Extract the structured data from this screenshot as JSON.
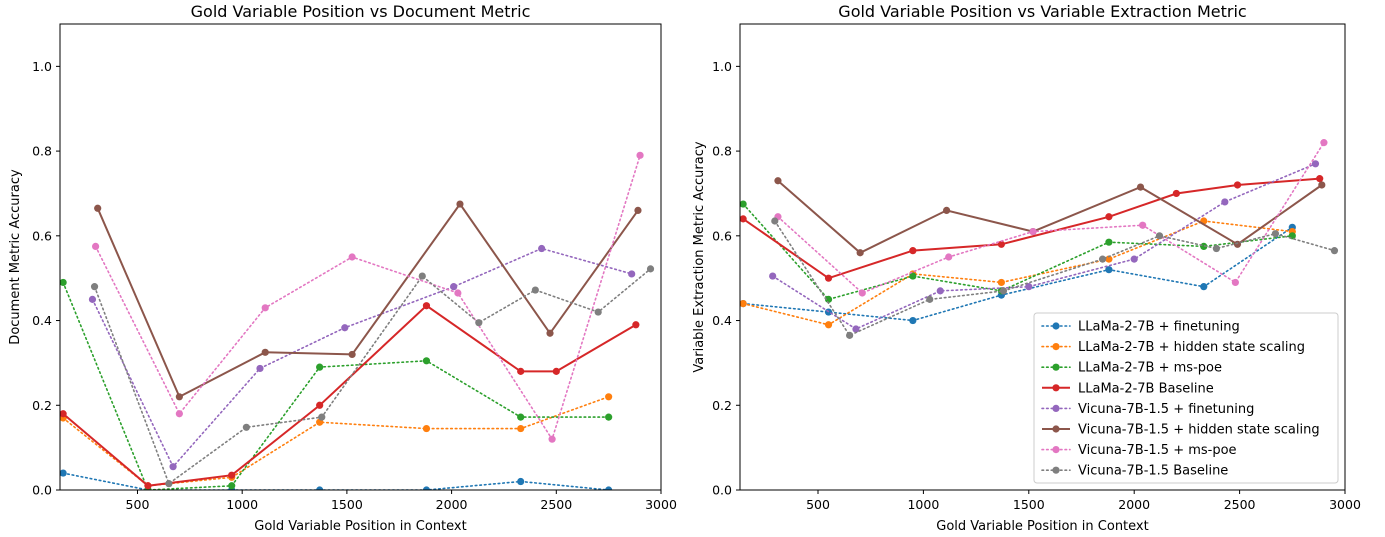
{
  "chart_data": [
    {
      "type": "line",
      "title": "Gold Variable Position vs Document Metric",
      "xlabel": "Gold Variable Position in Context",
      "ylabel": "Document Metric Accuracy",
      "xlim": [
        130,
        3000
      ],
      "ylim": [
        0,
        1.1
      ],
      "xticks": [
        500,
        1000,
        1500,
        2000,
        2500,
        3000
      ],
      "yticks": [
        0.0,
        0.2,
        0.4,
        0.6,
        0.8,
        1.0
      ],
      "xtick_labels": [
        "500",
        "1000",
        "1500",
        "2000",
        "2500",
        "3000"
      ],
      "ytick_labels": [
        "0.0",
        "0.2",
        "0.4",
        "0.6",
        "0.8",
        "1.0"
      ],
      "grid": false,
      "series": [
        {
          "name": "LLaMa-2-7B + finetuning",
          "color": "#1f77b4",
          "style": "dotted",
          "x": [
            145,
            550,
            950,
            1370,
            1880,
            2330,
            2750
          ],
          "y": [
            0.04,
            0.0,
            0.0,
            0.0,
            0.0,
            0.02,
            0.0
          ]
        },
        {
          "name": "LLaMa-2-7B + hidden state scaling",
          "color": "#ff7f0e",
          "style": "dotted",
          "x": [
            145,
            550,
            950,
            1370,
            1880,
            2330,
            2750
          ],
          "y": [
            0.17,
            0.01,
            0.03,
            0.16,
            0.145,
            0.145,
            0.22
          ]
        },
        {
          "name": "LLaMa-2-7B + ms-poe",
          "color": "#2ca02c",
          "style": "dotted",
          "x": [
            145,
            550,
            950,
            1370,
            1880,
            2330,
            2750
          ],
          "y": [
            0.49,
            0.0,
            0.01,
            0.29,
            0.305,
            0.172,
            0.172
          ]
        },
        {
          "name": "LLaMa-2-7B Baseline",
          "color": "#d62728",
          "style": "solid",
          "x": [
            145,
            550,
            950,
            1370,
            1880,
            2330,
            2500,
            2880
          ],
          "y": [
            0.18,
            0.01,
            0.035,
            0.2,
            0.435,
            0.28,
            0.28,
            0.39
          ]
        },
        {
          "name": "Vicuna-7B-1.5 + finetuning",
          "color": "#9467bd",
          "style": "dotted",
          "x": [
            285,
            670,
            1085,
            1490,
            2010,
            2430,
            2860
          ],
          "y": [
            0.45,
            0.055,
            0.287,
            0.383,
            0.48,
            0.57,
            0.51
          ]
        },
        {
          "name": "Vicuna-7B-1.5 + hidden state scaling",
          "color": "#8c564b",
          "style": "solid",
          "x": [
            310,
            700,
            1110,
            1525,
            2040,
            2470,
            2890
          ],
          "y": [
            0.665,
            0.22,
            0.325,
            0.32,
            0.675,
            0.37,
            0.66
          ]
        },
        {
          "name": "Vicuna-7B-1.5 + ms-poe",
          "color": "#e377c2",
          "style": "dotted",
          "x": [
            300,
            700,
            1110,
            1525,
            2030,
            2480,
            2900
          ],
          "y": [
            0.575,
            0.18,
            0.43,
            0.55,
            0.465,
            0.12,
            0.79
          ]
        },
        {
          "name": "Vicuna-7B-1.5 Baseline",
          "color": "#7f7f7f",
          "style": "dotted",
          "x": [
            295,
            650,
            1020,
            1380,
            1860,
            2130,
            2400,
            2700,
            2950
          ],
          "y": [
            0.48,
            0.015,
            0.148,
            0.172,
            0.505,
            0.395,
            0.472,
            0.42,
            0.522
          ]
        }
      ]
    },
    {
      "type": "line",
      "title": "Gold Variable Position vs Variable Extraction Metric",
      "xlabel": "Gold Variable Position in Context",
      "ylabel": "Variable Extraction Metric Accuracy",
      "xlim": [
        130,
        3000
      ],
      "ylim": [
        0,
        1.1
      ],
      "xticks": [
        500,
        1000,
        1500,
        2000,
        2500,
        3000
      ],
      "yticks": [
        0.0,
        0.2,
        0.4,
        0.6,
        0.8,
        1.0
      ],
      "xtick_labels": [
        "500",
        "1000",
        "1500",
        "2000",
        "2500",
        "3000"
      ],
      "ytick_labels": [
        "0.0",
        "0.2",
        "0.4",
        "0.6",
        "0.8",
        "1.0"
      ],
      "grid": false,
      "legend": "lower-right",
      "series": [
        {
          "name": "LLaMa-2-7B + finetuning",
          "color": "#1f77b4",
          "style": "dotted",
          "x": [
            145,
            550,
            950,
            1370,
            1880,
            2330,
            2750
          ],
          "y": [
            0.44,
            0.42,
            0.4,
            0.46,
            0.52,
            0.48,
            0.62
          ]
        },
        {
          "name": "LLaMa-2-7B + hidden state scaling",
          "color": "#ff7f0e",
          "style": "dotted",
          "x": [
            145,
            550,
            950,
            1370,
            1880,
            2330,
            2750
          ],
          "y": [
            0.44,
            0.39,
            0.51,
            0.49,
            0.545,
            0.635,
            0.61
          ]
        },
        {
          "name": "LLaMa-2-7B + ms-poe",
          "color": "#2ca02c",
          "style": "dotted",
          "x": [
            145,
            550,
            950,
            1370,
            1880,
            2330,
            2750
          ],
          "y": [
            0.675,
            0.45,
            0.505,
            0.47,
            0.585,
            0.575,
            0.6
          ]
        },
        {
          "name": "LLaMa-2-7B Baseline",
          "color": "#d62728",
          "style": "solid",
          "x": [
            145,
            550,
            950,
            1370,
            1880,
            2200,
            2490,
            2880
          ],
          "y": [
            0.64,
            0.5,
            0.565,
            0.58,
            0.645,
            0.7,
            0.72,
            0.735
          ]
        },
        {
          "name": "Vicuna-7B-1.5 + finetuning",
          "color": "#9467bd",
          "style": "dotted",
          "x": [
            285,
            680,
            1080,
            1500,
            2000,
            2430,
            2860
          ],
          "y": [
            0.505,
            0.38,
            0.47,
            0.48,
            0.545,
            0.68,
            0.77
          ]
        },
        {
          "name": "Vicuna-7B-1.5 + hidden state scaling",
          "color": "#8c564b",
          "style": "solid",
          "x": [
            310,
            700,
            1110,
            1520,
            2030,
            2490,
            2890
          ],
          "y": [
            0.73,
            0.56,
            0.66,
            0.61,
            0.715,
            0.58,
            0.72
          ]
        },
        {
          "name": "Vicuna-7B-1.5 + ms-poe",
          "color": "#e377c2",
          "style": "dotted",
          "x": [
            310,
            710,
            1120,
            1520,
            2040,
            2480,
            2900
          ],
          "y": [
            0.645,
            0.465,
            0.55,
            0.61,
            0.625,
            0.49,
            0.82
          ]
        },
        {
          "name": "Vicuna-7B-1.5 Baseline",
          "color": "#7f7f7f",
          "style": "dotted",
          "x": [
            295,
            650,
            1030,
            1380,
            1850,
            2120,
            2390,
            2670,
            2950
          ],
          "y": [
            0.635,
            0.365,
            0.45,
            0.47,
            0.545,
            0.6,
            0.57,
            0.605,
            0.565
          ]
        }
      ]
    }
  ]
}
